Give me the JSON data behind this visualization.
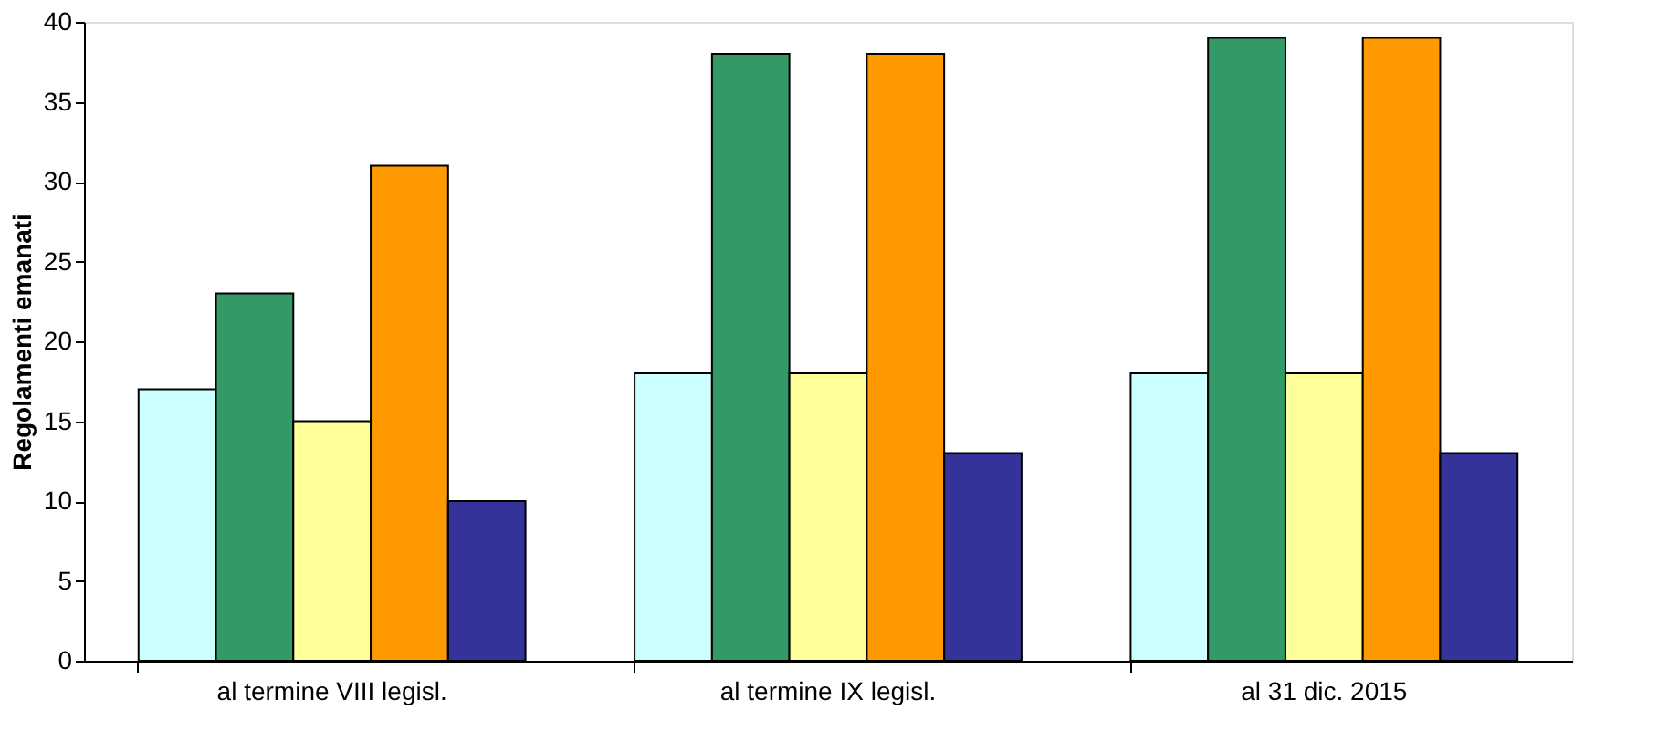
{
  "chart_data": {
    "type": "bar",
    "ylabel": "Regolamenti emanati",
    "categories": [
      "al termine VIII legisl.",
      "al termine IX legisl.",
      "al 31 dic. 2015"
    ],
    "series": [
      {
        "color": "#ccffff",
        "values": [
          17,
          18,
          18
        ]
      },
      {
        "color": "#339966",
        "values": [
          23,
          38,
          39
        ]
      },
      {
        "color": "#ffff99",
        "values": [
          15,
          18,
          18
        ]
      },
      {
        "color": "#ff9900",
        "values": [
          31,
          38,
          39
        ]
      },
      {
        "color": "#333399",
        "values": [
          10,
          13,
          13
        ]
      }
    ],
    "ylim": [
      0,
      40
    ],
    "yticks": [
      0,
      5,
      10,
      15,
      20,
      25,
      30,
      35,
      40
    ],
    "grid": false,
    "legend": false
  }
}
